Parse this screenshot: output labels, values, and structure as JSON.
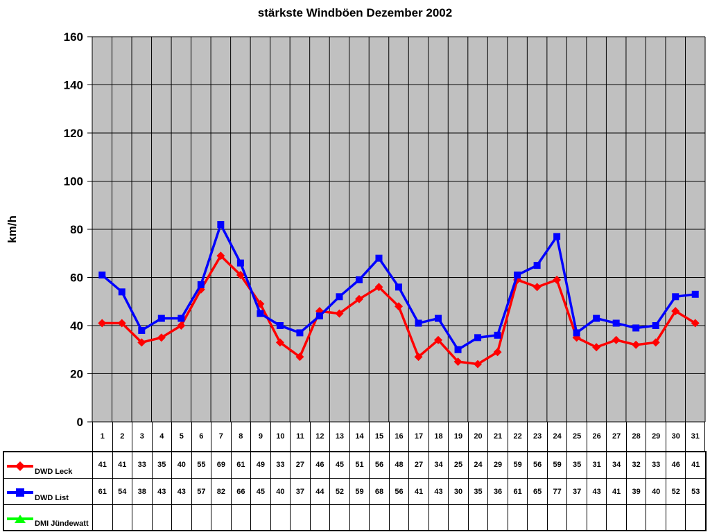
{
  "title": "stärkste Windböen Dezember 2002",
  "y_axis": {
    "label": "km/h",
    "tick_labels": [
      "160",
      "140",
      "120",
      "100",
      "80",
      "60",
      "40",
      "20",
      "0"
    ]
  },
  "chart_data": {
    "type": "line",
    "title": "stärkste Windböen Dezember 2002",
    "xlabel": "",
    "ylabel": "km/h",
    "ylim": [
      0,
      160
    ],
    "ytick_step": 20,
    "grid": true,
    "plot_background_color": "#C0C0C0",
    "gridline_color": "#000000",
    "legend_position": "table-left",
    "categories": [
      1,
      2,
      3,
      4,
      5,
      6,
      7,
      8,
      9,
      10,
      11,
      12,
      13,
      14,
      15,
      16,
      17,
      18,
      19,
      20,
      21,
      22,
      23,
      24,
      25,
      26,
      27,
      28,
      29,
      30,
      31
    ],
    "series": [
      {
        "name": "DWD Leck",
        "color": "#FF0000",
        "marker": "diamond",
        "values": [
          41,
          41,
          33,
          35,
          40,
          55,
          69,
          61,
          49,
          33,
          27,
          46,
          45,
          51,
          56,
          48,
          27,
          34,
          25,
          24,
          29,
          59,
          56,
          59,
          35,
          31,
          34,
          32,
          33,
          46,
          41
        ]
      },
      {
        "name": "DWD List",
        "color": "#0000FF",
        "marker": "square",
        "values": [
          61,
          54,
          38,
          43,
          43,
          57,
          82,
          66,
          45,
          40,
          37,
          44,
          52,
          59,
          68,
          56,
          41,
          43,
          30,
          35,
          36,
          61,
          65,
          77,
          37,
          43,
          41,
          39,
          40,
          52,
          53
        ]
      },
      {
        "name": "DMI Jündewatt",
        "color": "#00FF00",
        "marker": "triangle",
        "values": []
      }
    ]
  }
}
